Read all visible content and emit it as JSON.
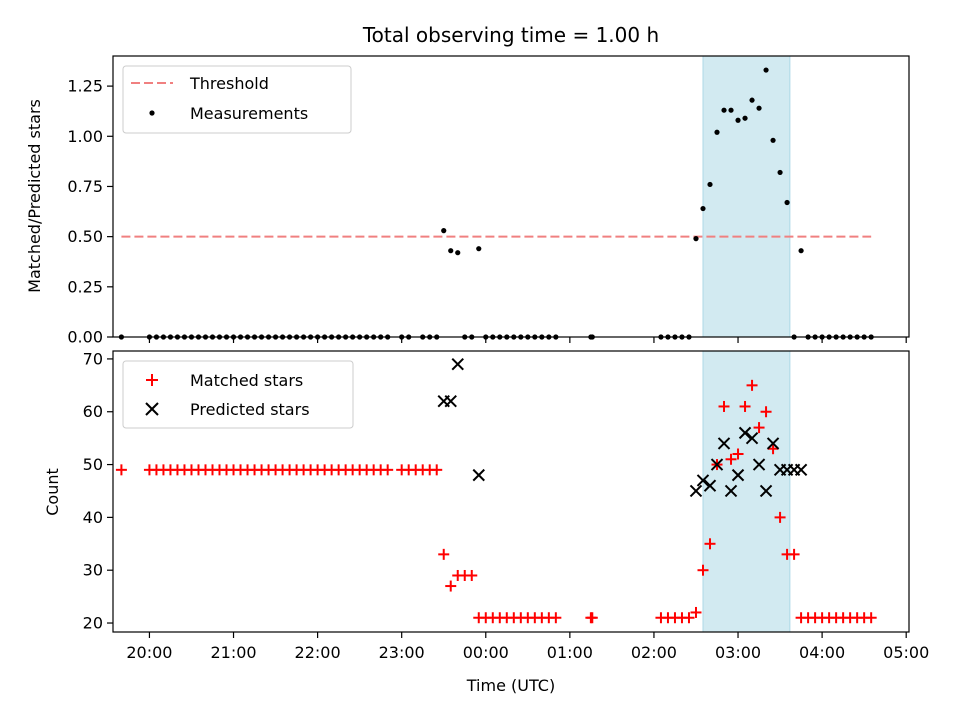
{
  "chart_data": {
    "title": "Total observing time = 1.00 h",
    "xlabel": "Time (UTC)",
    "x_unit": "hours",
    "xlim": [
      "19:34",
      "05:02"
    ],
    "xticks": [
      {
        "value": "20:00",
        "label": "20:00"
      },
      {
        "value": "21:00",
        "label": "21:00"
      },
      {
        "value": "22:00",
        "label": "22:00"
      },
      {
        "value": "23:00",
        "label": "23:00"
      },
      {
        "value": "00:00",
        "label": "00:00"
      },
      {
        "value": "01:00",
        "label": "01:00"
      },
      {
        "value": "02:00",
        "label": "02:00"
      },
      {
        "value": "03:00",
        "label": "03:00"
      },
      {
        "value": "04:00",
        "label": "04:00"
      },
      {
        "value": "05:00",
        "label": "05:00"
      }
    ],
    "shaded_region": {
      "start": "02:35",
      "end": "03:37",
      "color": "#add8e6"
    },
    "top": {
      "type": "scatter",
      "ylabel": "Matched/Predicted stars",
      "ylim": [
        0,
        1.4
      ],
      "yticks": [
        "0.00",
        "0.25",
        "0.50",
        "0.75",
        "1.00",
        "1.25"
      ],
      "threshold": {
        "name": "Threshold",
        "y": 0.5,
        "x_start": "19:40",
        "x_end": "04:35",
        "color": "#f08080"
      },
      "measurements": {
        "name": "Measurements",
        "color": "#000000",
        "points": [
          [
            "19:40",
            0
          ],
          [
            "20:00",
            0
          ],
          [
            "20:05",
            0
          ],
          [
            "20:10",
            0
          ],
          [
            "20:15",
            0
          ],
          [
            "20:20",
            0
          ],
          [
            "20:25",
            0
          ],
          [
            "20:30",
            0
          ],
          [
            "20:35",
            0
          ],
          [
            "20:40",
            0
          ],
          [
            "20:45",
            0
          ],
          [
            "20:50",
            0
          ],
          [
            "20:55",
            0
          ],
          [
            "21:00",
            0
          ],
          [
            "21:05",
            0
          ],
          [
            "21:10",
            0
          ],
          [
            "21:15",
            0
          ],
          [
            "21:20",
            0
          ],
          [
            "21:25",
            0
          ],
          [
            "21:30",
            0
          ],
          [
            "21:35",
            0
          ],
          [
            "21:40",
            0
          ],
          [
            "21:45",
            0
          ],
          [
            "21:50",
            0
          ],
          [
            "21:55",
            0
          ],
          [
            "22:00",
            0
          ],
          [
            "22:05",
            0
          ],
          [
            "22:10",
            0
          ],
          [
            "22:15",
            0
          ],
          [
            "22:20",
            0
          ],
          [
            "22:25",
            0
          ],
          [
            "22:30",
            0
          ],
          [
            "22:35",
            0
          ],
          [
            "22:40",
            0
          ],
          [
            "22:45",
            0
          ],
          [
            "22:50",
            0
          ],
          [
            "23:00",
            0
          ],
          [
            "23:05",
            0
          ],
          [
            "23:15",
            0
          ],
          [
            "23:20",
            0
          ],
          [
            "23:25",
            0
          ],
          [
            "23:30",
            0.53
          ],
          [
            "23:35",
            0.43
          ],
          [
            "23:40",
            0.42
          ],
          [
            "23:45",
            0
          ],
          [
            "23:50",
            0
          ],
          [
            "23:55",
            0.44
          ],
          [
            "00:00",
            0
          ],
          [
            "00:05",
            0
          ],
          [
            "00:10",
            0
          ],
          [
            "00:15",
            0
          ],
          [
            "00:20",
            0
          ],
          [
            "00:25",
            0
          ],
          [
            "00:30",
            0
          ],
          [
            "00:35",
            0
          ],
          [
            "00:40",
            0
          ],
          [
            "00:45",
            0
          ],
          [
            "00:50",
            0
          ],
          [
            "01:15",
            0
          ],
          [
            "01:16",
            0
          ],
          [
            "02:05",
            0
          ],
          [
            "02:10",
            0
          ],
          [
            "02:15",
            0
          ],
          [
            "02:20",
            0
          ],
          [
            "02:25",
            0
          ],
          [
            "02:30",
            0.49
          ],
          [
            "02:35",
            0.64
          ],
          [
            "02:40",
            0.76
          ],
          [
            "02:45",
            1.02
          ],
          [
            "02:50",
            1.13
          ],
          [
            "02:55",
            1.13
          ],
          [
            "03:00",
            1.08
          ],
          [
            "03:05",
            1.09
          ],
          [
            "03:10",
            1.18
          ],
          [
            "03:15",
            1.14
          ],
          [
            "03:20",
            1.33
          ],
          [
            "03:25",
            0.98
          ],
          [
            "03:30",
            0.82
          ],
          [
            "03:35",
            0.67
          ],
          [
            "03:40",
            0
          ],
          [
            "03:45",
            0.43
          ],
          [
            "03:50",
            0
          ],
          [
            "03:55",
            0
          ],
          [
            "04:00",
            0
          ],
          [
            "04:05",
            0
          ],
          [
            "04:10",
            0
          ],
          [
            "04:15",
            0
          ],
          [
            "04:20",
            0
          ],
          [
            "04:25",
            0
          ],
          [
            "04:30",
            0
          ],
          [
            "04:35",
            0
          ]
        ]
      }
    },
    "bottom": {
      "type": "scatter",
      "ylabel": "Count",
      "ylim": [
        18.3,
        71.5
      ],
      "yticks": [
        "20",
        "30",
        "40",
        "50",
        "60",
        "70"
      ],
      "series": [
        {
          "name": "Matched stars",
          "marker": "plus",
          "color": "#ff0000",
          "points": [
            [
              "19:40",
              49
            ],
            [
              "20:00",
              49
            ],
            [
              "20:05",
              49
            ],
            [
              "20:10",
              49
            ],
            [
              "20:15",
              49
            ],
            [
              "20:20",
              49
            ],
            [
              "20:25",
              49
            ],
            [
              "20:30",
              49
            ],
            [
              "20:35",
              49
            ],
            [
              "20:40",
              49
            ],
            [
              "20:45",
              49
            ],
            [
              "20:50",
              49
            ],
            [
              "20:55",
              49
            ],
            [
              "21:00",
              49
            ],
            [
              "21:05",
              49
            ],
            [
              "21:10",
              49
            ],
            [
              "21:15",
              49
            ],
            [
              "21:20",
              49
            ],
            [
              "21:25",
              49
            ],
            [
              "21:30",
              49
            ],
            [
              "21:35",
              49
            ],
            [
              "21:40",
              49
            ],
            [
              "21:45",
              49
            ],
            [
              "21:50",
              49
            ],
            [
              "21:55",
              49
            ],
            [
              "22:00",
              49
            ],
            [
              "22:05",
              49
            ],
            [
              "22:10",
              49
            ],
            [
              "22:15",
              49
            ],
            [
              "22:20",
              49
            ],
            [
              "22:25",
              49
            ],
            [
              "22:30",
              49
            ],
            [
              "22:35",
              49
            ],
            [
              "22:40",
              49
            ],
            [
              "22:45",
              49
            ],
            [
              "22:50",
              49
            ],
            [
              "23:00",
              49
            ],
            [
              "23:05",
              49
            ],
            [
              "23:10",
              49
            ],
            [
              "23:15",
              49
            ],
            [
              "23:20",
              49
            ],
            [
              "23:25",
              49
            ],
            [
              "23:30",
              33
            ],
            [
              "23:35",
              27
            ],
            [
              "23:40",
              29
            ],
            [
              "23:45",
              29
            ],
            [
              "23:50",
              29
            ],
            [
              "23:55",
              21
            ],
            [
              "00:00",
              21
            ],
            [
              "00:05",
              21
            ],
            [
              "00:10",
              21
            ],
            [
              "00:15",
              21
            ],
            [
              "00:20",
              21
            ],
            [
              "00:25",
              21
            ],
            [
              "00:30",
              21
            ],
            [
              "00:35",
              21
            ],
            [
              "00:40",
              21
            ],
            [
              "00:45",
              21
            ],
            [
              "00:50",
              21
            ],
            [
              "01:15",
              21
            ],
            [
              "01:16",
              21
            ],
            [
              "02:05",
              21
            ],
            [
              "02:10",
              21
            ],
            [
              "02:15",
              21
            ],
            [
              "02:20",
              21
            ],
            [
              "02:25",
              21
            ],
            [
              "02:30",
              22
            ],
            [
              "02:35",
              30
            ],
            [
              "02:40",
              35
            ],
            [
              "02:45",
              50
            ],
            [
              "02:50",
              61
            ],
            [
              "02:55",
              51
            ],
            [
              "03:00",
              52
            ],
            [
              "03:05",
              61
            ],
            [
              "03:10",
              65
            ],
            [
              "03:15",
              57
            ],
            [
              "03:20",
              60
            ],
            [
              "03:25",
              53
            ],
            [
              "03:30",
              40
            ],
            [
              "03:35",
              33
            ],
            [
              "03:40",
              33
            ],
            [
              "03:45",
              21
            ],
            [
              "03:50",
              21
            ],
            [
              "03:55",
              21
            ],
            [
              "04:00",
              21
            ],
            [
              "04:05",
              21
            ],
            [
              "04:10",
              21
            ],
            [
              "04:15",
              21
            ],
            [
              "04:20",
              21
            ],
            [
              "04:25",
              21
            ],
            [
              "04:30",
              21
            ],
            [
              "04:35",
              21
            ]
          ]
        },
        {
          "name": "Predicted stars",
          "marker": "x",
          "color": "#000000",
          "points": [
            [
              "23:30",
              62
            ],
            [
              "23:35",
              62
            ],
            [
              "23:40",
              69
            ],
            [
              "23:55",
              48
            ],
            [
              "02:30",
              45
            ],
            [
              "02:35",
              47
            ],
            [
              "02:40",
              46
            ],
            [
              "02:45",
              50
            ],
            [
              "02:50",
              54
            ],
            [
              "02:55",
              45
            ],
            [
              "03:00",
              48
            ],
            [
              "03:05",
              56
            ],
            [
              "03:10",
              55
            ],
            [
              "03:15",
              50
            ],
            [
              "03:20",
              45
            ],
            [
              "03:25",
              54
            ],
            [
              "03:30",
              49
            ],
            [
              "03:35",
              49
            ],
            [
              "03:40",
              49
            ],
            [
              "03:45",
              49
            ]
          ]
        }
      ]
    }
  }
}
